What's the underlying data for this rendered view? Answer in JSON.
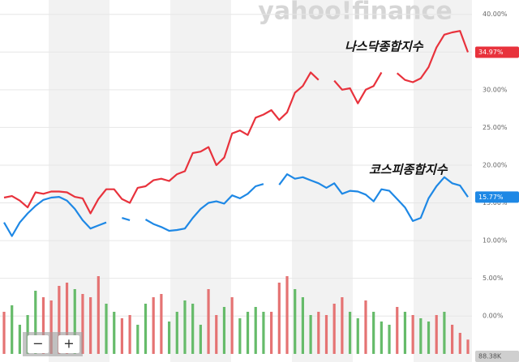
{
  "chart_data": {
    "type": "line",
    "watermark": "yahoo!finance",
    "ylim": [
      -6.1,
      41.9
    ],
    "yticks": [
      {
        "value": 40,
        "label": "40.00%"
      },
      {
        "value": 35,
        "label": "35.00%"
      },
      {
        "value": 30,
        "label": "30.00%"
      },
      {
        "value": 25,
        "label": "25.00%"
      },
      {
        "value": 20,
        "label": "20.00%"
      },
      {
        "value": 15,
        "label": "15.00%"
      },
      {
        "value": 10,
        "label": "10.00%"
      },
      {
        "value": 5,
        "label": "5.00%"
      },
      {
        "value": 0,
        "label": "0.00%"
      }
    ],
    "grid": true,
    "series": [
      {
        "name": "나스닥종합지수",
        "color": "#e8323c",
        "badge": "34.97%",
        "values": [
          15.7,
          15.9,
          15.3,
          14.4,
          16.4,
          16.2,
          16.5,
          16.5,
          16.4,
          15.8,
          15.6,
          13.6,
          15.5,
          16.8,
          16.8,
          15.5,
          15.0,
          17.0,
          17.2,
          18.0,
          18.2,
          17.9,
          18.8,
          19.2,
          21.6,
          21.8,
          22.4,
          20.0,
          21.0,
          24.2,
          24.6,
          24.0,
          26.3,
          26.7,
          27.3,
          26.0,
          27.0,
          29.6,
          30.5,
          32.3,
          31.3,
          null,
          31.2,
          30.0,
          30.2,
          28.2,
          30.0,
          30.5,
          32.3,
          null,
          32.2,
          31.3,
          31.0,
          31.5,
          33.0,
          35.6,
          37.3,
          37.6,
          37.8,
          34.97
        ]
      },
      {
        "name": "코스피종합지수",
        "color": "#1e88e5",
        "badge": "15.77%",
        "values": [
          12.4,
          10.6,
          12.4,
          13.6,
          14.6,
          15.4,
          15.7,
          15.8,
          15.3,
          14.2,
          12.7,
          11.6,
          12.0,
          12.4,
          null,
          13.0,
          12.7,
          null,
          12.8,
          12.2,
          11.8,
          11.3,
          11.4,
          11.6,
          13.0,
          14.2,
          15.0,
          15.2,
          14.9,
          16.0,
          15.6,
          16.2,
          17.2,
          17.5,
          null,
          17.4,
          18.8,
          18.2,
          18.4,
          18.0,
          17.6,
          17.0,
          17.6,
          16.2,
          16.6,
          16.5,
          16.1,
          15.2,
          16.8,
          16.6,
          15.5,
          14.4,
          12.6,
          13.0,
          15.6,
          17.2,
          18.4,
          17.6,
          17.3,
          15.77
        ]
      }
    ],
    "volume": {
      "ylim": [
        0,
        500
      ],
      "badge": "88.38K",
      "values": [
        260,
        300,
        180,
        240,
        390,
        350,
        330,
        420,
        440,
        400,
        370,
        350,
        480,
        310,
        260,
        220,
        240,
        180,
        310,
        350,
        370,
        200,
        260,
        330,
        310,
        180,
        400,
        240,
        290,
        350,
        220,
        260,
        290,
        260,
        260,
        440,
        480,
        400,
        350,
        240,
        260,
        240,
        310,
        350,
        260,
        220,
        330,
        260,
        200,
        180,
        290,
        260,
        240,
        220,
        200,
        240,
        260,
        180,
        130,
        88.38
      ],
      "colors": [
        "#e57373",
        "#66bb6a",
        "#66bb6a",
        "#66bb6a",
        "#66bb6a",
        "#e57373",
        "#e57373",
        "#e57373",
        "#e57373",
        "#66bb6a",
        "#e57373",
        "#e57373",
        "#e57373",
        "#66bb6a",
        "#66bb6a",
        "#e57373",
        "#e57373",
        "#66bb6a",
        "#66bb6a",
        "#e57373",
        "#e57373",
        "#66bb6a",
        "#66bb6a",
        "#66bb6a",
        "#66bb6a",
        "#66bb6a",
        "#e57373",
        "#e57373",
        "#66bb6a",
        "#e57373",
        "#66bb6a",
        "#66bb6a",
        "#66bb6a",
        "#66bb6a",
        "#e57373",
        "#e57373",
        "#e57373",
        "#66bb6a",
        "#66bb6a",
        "#66bb6a",
        "#e57373",
        "#e57373",
        "#e57373",
        "#e57373",
        "#66bb6a",
        "#66bb6a",
        "#e57373",
        "#66bb6a",
        "#66bb6a",
        "#66bb6a",
        "#e57373",
        "#66bb6a",
        "#e57373",
        "#66bb6a",
        "#66bb6a",
        "#e57373",
        "#66bb6a",
        "#e57373",
        "#e57373",
        "#e57373"
      ]
    },
    "annotations": [
      {
        "text": "나스닥종합지수",
        "series": 0
      },
      {
        "text": "코스피종합지수",
        "series": 1
      }
    ],
    "zoom_buttons": [
      "−",
      "+"
    ]
  }
}
